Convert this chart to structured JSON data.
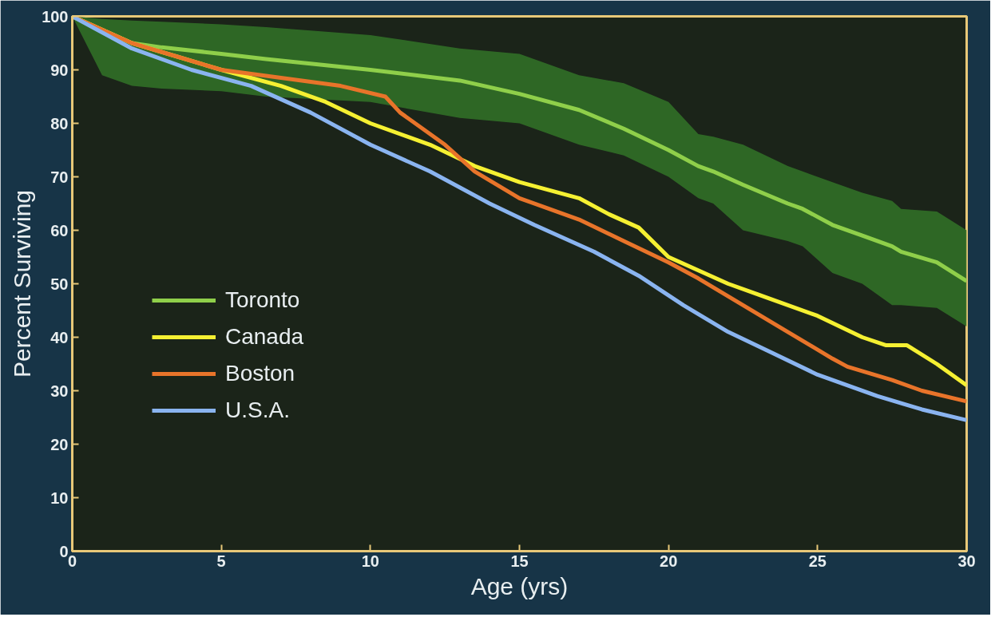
{
  "chart_data": {
    "type": "line",
    "xlabel": "Age (yrs)",
    "ylabel": "Percent Surviving",
    "xlim": [
      0,
      30
    ],
    "ylim": [
      0,
      100
    ],
    "xticks": [
      0,
      5,
      10,
      15,
      20,
      25,
      30
    ],
    "yticks": [
      0,
      10,
      20,
      30,
      40,
      50,
      60,
      70,
      80,
      90,
      100
    ],
    "grid": false,
    "legend": "bottom left",
    "marker": "none",
    "line_style": "solid",
    "series": [
      {
        "name": "Toronto",
        "color": "#8fcf4a",
        "x": [
          0,
          1,
          2,
          3,
          5,
          6.5,
          10,
          13,
          15,
          17,
          18.5,
          20,
          21,
          21.5,
          22.5,
          24,
          24.5,
          25.5,
          26.5,
          27.5,
          27.8,
          29,
          30
        ],
        "values": [
          100,
          97.5,
          95,
          94.2,
          93,
          92,
          90,
          88,
          85.5,
          82.5,
          79,
          75,
          72,
          71,
          68.5,
          65,
          64,
          61,
          59,
          57,
          56,
          54,
          50.5
        ],
        "upper": [
          100,
          99.5,
          99.2,
          99,
          98.5,
          98,
          96.5,
          94,
          93,
          89,
          87.5,
          84,
          78,
          77.5,
          76,
          72,
          71,
          69,
          67,
          65.5,
          64,
          63.5,
          60
        ],
        "lower": [
          100,
          89,
          87,
          86.5,
          86,
          85,
          84,
          81,
          80,
          76,
          74,
          70,
          66,
          65,
          60,
          58,
          57,
          52,
          50,
          46,
          46,
          45.5,
          42
        ]
      },
      {
        "name": "Canada",
        "color": "#f5f032",
        "x": [
          0,
          2,
          5,
          7,
          8.5,
          10,
          12,
          13.5,
          15,
          17,
          18,
          19,
          20,
          22,
          23,
          25,
          26.5,
          27.3,
          28,
          29,
          30
        ],
        "values": [
          100,
          95,
          90,
          87,
          84,
          80,
          76,
          72,
          69,
          66,
          63,
          60.5,
          55,
          50,
          48,
          44,
          40,
          38.5,
          38.5,
          35,
          31
        ]
      },
      {
        "name": "Boston",
        "color": "#e8742a",
        "x": [
          0,
          2,
          5,
          7,
          9,
          10.5,
          11,
          12.5,
          13.5,
          15,
          17,
          18.5,
          20,
          21,
          22.5,
          24,
          25.5,
          26,
          27.5,
          28.5,
          30
        ],
        "values": [
          100,
          95,
          90,
          88.5,
          87,
          85,
          82,
          76,
          71,
          66,
          62,
          58,
          54,
          51,
          46,
          41,
          36,
          34.5,
          32,
          30,
          28
        ]
      },
      {
        "name": "U.S.A.",
        "color": "#8ab4f0",
        "x": [
          0,
          2,
          4,
          6,
          8,
          10,
          12,
          14,
          15.5,
          17.5,
          19,
          20.5,
          22,
          23.5,
          25,
          27,
          28.5,
          30
        ],
        "values": [
          100,
          94,
          90,
          87,
          82,
          76,
          71,
          65,
          61,
          56,
          51.5,
          46,
          41,
          37,
          33,
          29,
          26.5,
          24.5
        ]
      }
    ]
  }
}
